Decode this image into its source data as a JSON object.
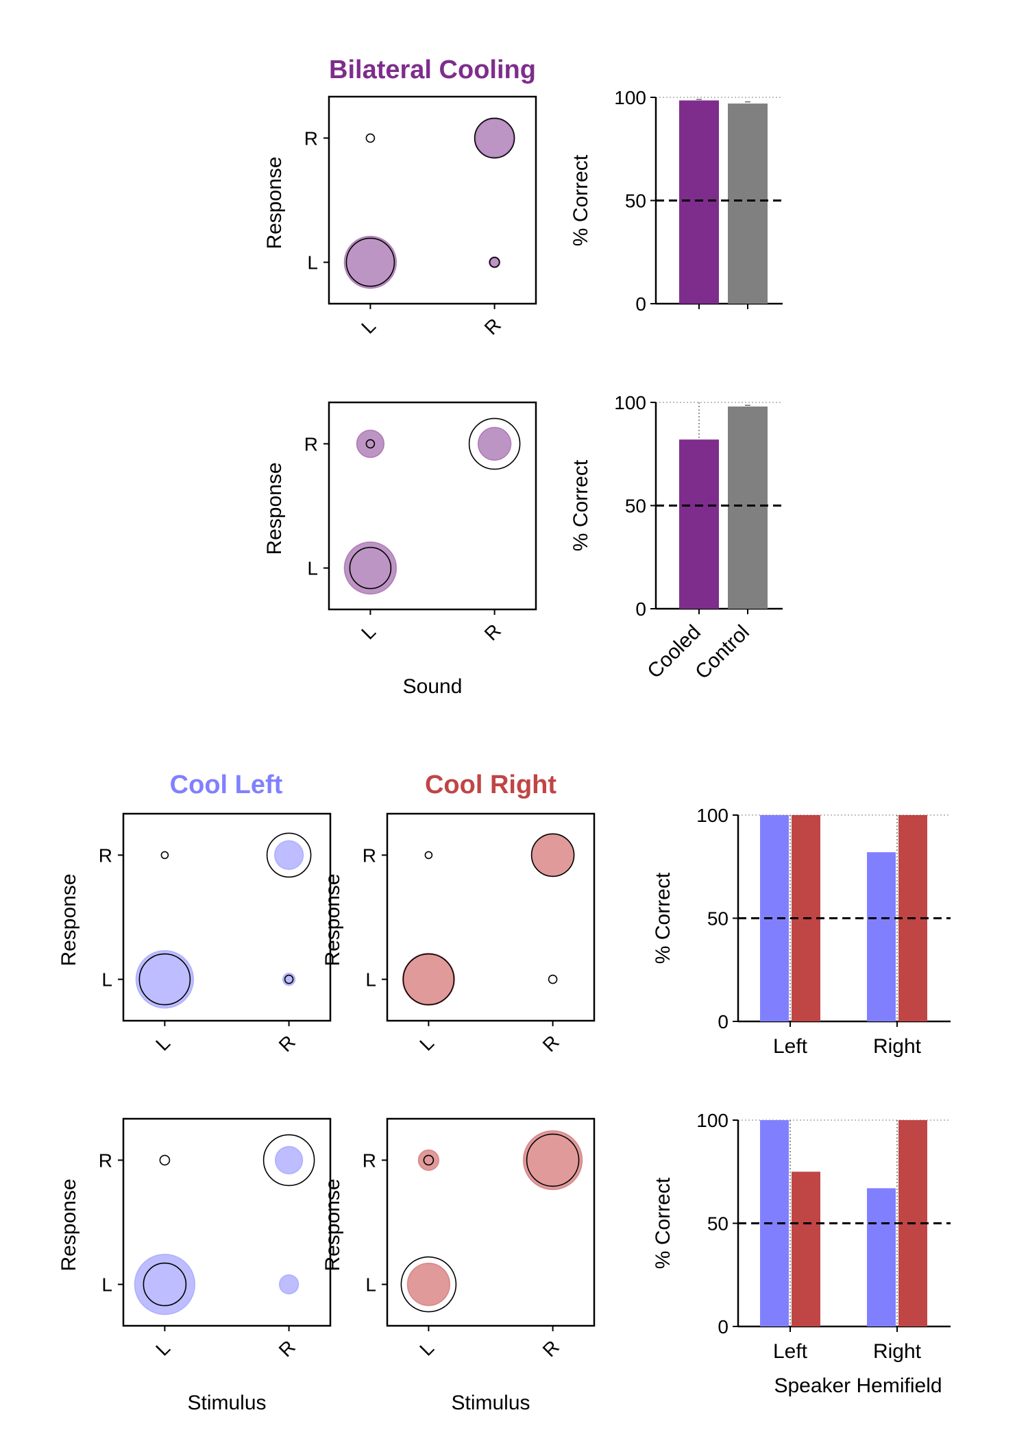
{
  "colors": {
    "purple": "#7e2d8c",
    "purple_light": "#bd95c4",
    "gray": "#808080",
    "blue": "#8080ff",
    "blue_light": "#bdbdff",
    "red": "#c04545",
    "red_light": "#e09a9a",
    "black": "#000000"
  },
  "titles": {
    "bilateral": "Bilateral Cooling",
    "cool_left": "Cool Left",
    "cool_right": "Cool Right"
  },
  "labels": {
    "response": "Response",
    "percent_correct": "% Correct",
    "sound": "Sound",
    "stimulus": "Stimulus",
    "speaker_hemifield": "Speaker Hemifield"
  },
  "chart_data": [
    {
      "id": "bubble-bilateral-1",
      "type": "scatter",
      "title": "Bilateral Cooling",
      "xlabel": "",
      "ylabel": "Response",
      "xticks": [
        "L",
        "R"
      ],
      "yticks": [
        "L",
        "R"
      ],
      "cooled_radius": [
        [
          38,
          8
        ],
        [
          0,
          28
        ]
      ],
      "control_radius": [
        [
          35,
          7
        ],
        [
          6,
          29
        ]
      ]
    },
    {
      "id": "bar-bilateral-1",
      "type": "bar",
      "ylabel": "% Correct",
      "ylim": [
        0,
        100
      ],
      "yticks": [
        0,
        50,
        100
      ],
      "chance": 50,
      "categories": [
        "Cooled",
        "Control"
      ],
      "show_category_labels": false,
      "values": [
        98.5,
        97
      ],
      "errors": [
        0.5,
        0.8
      ]
    },
    {
      "id": "bubble-bilateral-2",
      "type": "scatter",
      "xlabel": "Sound",
      "ylabel": "Response",
      "xticks": [
        "L",
        "R"
      ],
      "yticks": [
        "L",
        "R"
      ],
      "cooled_radius": [
        [
          38,
          0
        ],
        [
          20,
          24
        ]
      ],
      "control_radius": [
        [
          30,
          0
        ],
        [
          6,
          37
        ]
      ]
    },
    {
      "id": "bar-bilateral-2",
      "type": "bar",
      "ylabel": "% Correct",
      "ylim": [
        0,
        100
      ],
      "yticks": [
        0,
        50,
        100
      ],
      "chance": 50,
      "categories": [
        "Cooled",
        "Control"
      ],
      "show_category_labels": true,
      "values": [
        82,
        98
      ],
      "errors": [
        18,
        0.6
      ]
    },
    {
      "id": "bubble-cool-left-1",
      "type": "scatter",
      "title": "Cool Left",
      "xlabel": "",
      "ylabel": "Response",
      "xticks": [
        "L",
        "R"
      ],
      "yticks": [
        "L",
        "R"
      ],
      "cooled_radius": [
        [
          42,
          9
        ],
        [
          0,
          21
        ]
      ],
      "control_radius": [
        [
          37,
          6
        ],
        [
          5,
          32
        ]
      ]
    },
    {
      "id": "bubble-cool-right-1",
      "type": "scatter",
      "title": "Cool Right",
      "xlabel": "",
      "ylabel": "Response",
      "xticks": [
        "L",
        "R"
      ],
      "yticks": [
        "L",
        "R"
      ],
      "cooled_radius": [
        [
          38,
          0
        ],
        [
          0,
          31
        ]
      ],
      "control_radius": [
        [
          37,
          6
        ],
        [
          5,
          31
        ]
      ]
    },
    {
      "id": "bar-hemifield-1",
      "type": "bar",
      "ylabel": "% Correct",
      "ylim": [
        0,
        100
      ],
      "yticks": [
        0,
        50,
        100
      ],
      "chance": 50,
      "categories": [
        "Left",
        "Right"
      ],
      "xlabel": "",
      "series": [
        {
          "name": "Cool Left",
          "values": [
            100,
            82
          ]
        },
        {
          "name": "Cool Right",
          "values": [
            100,
            100
          ]
        }
      ]
    },
    {
      "id": "bubble-cool-left-2",
      "type": "scatter",
      "xlabel": "Stimulus",
      "ylabel": "Response",
      "xticks": [
        "L",
        "R"
      ],
      "yticks": [
        "L",
        "R"
      ],
      "cooled_radius": [
        [
          44,
          14
        ],
        [
          0,
          20
        ]
      ],
      "control_radius": [
        [
          31,
          0
        ],
        [
          7,
          37
        ]
      ]
    },
    {
      "id": "bubble-cool-right-2",
      "type": "scatter",
      "xlabel": "Stimulus",
      "ylabel": "Response",
      "xticks": [
        "L",
        "R"
      ],
      "yticks": [
        "L",
        "R"
      ],
      "cooled_radius": [
        [
          31,
          0
        ],
        [
          15,
          43
        ]
      ],
      "control_radius": [
        [
          40,
          0
        ],
        [
          7,
          38
        ]
      ]
    },
    {
      "id": "bar-hemifield-2",
      "type": "bar",
      "ylabel": "% Correct",
      "ylim": [
        0,
        100
      ],
      "yticks": [
        0,
        50,
        100
      ],
      "chance": 50,
      "categories": [
        "Left",
        "Right"
      ],
      "xlabel": "Speaker Hemifield",
      "series": [
        {
          "name": "Cool Left",
          "values": [
            100,
            67
          ]
        },
        {
          "name": "Cool Right",
          "values": [
            75,
            100
          ]
        }
      ]
    }
  ]
}
